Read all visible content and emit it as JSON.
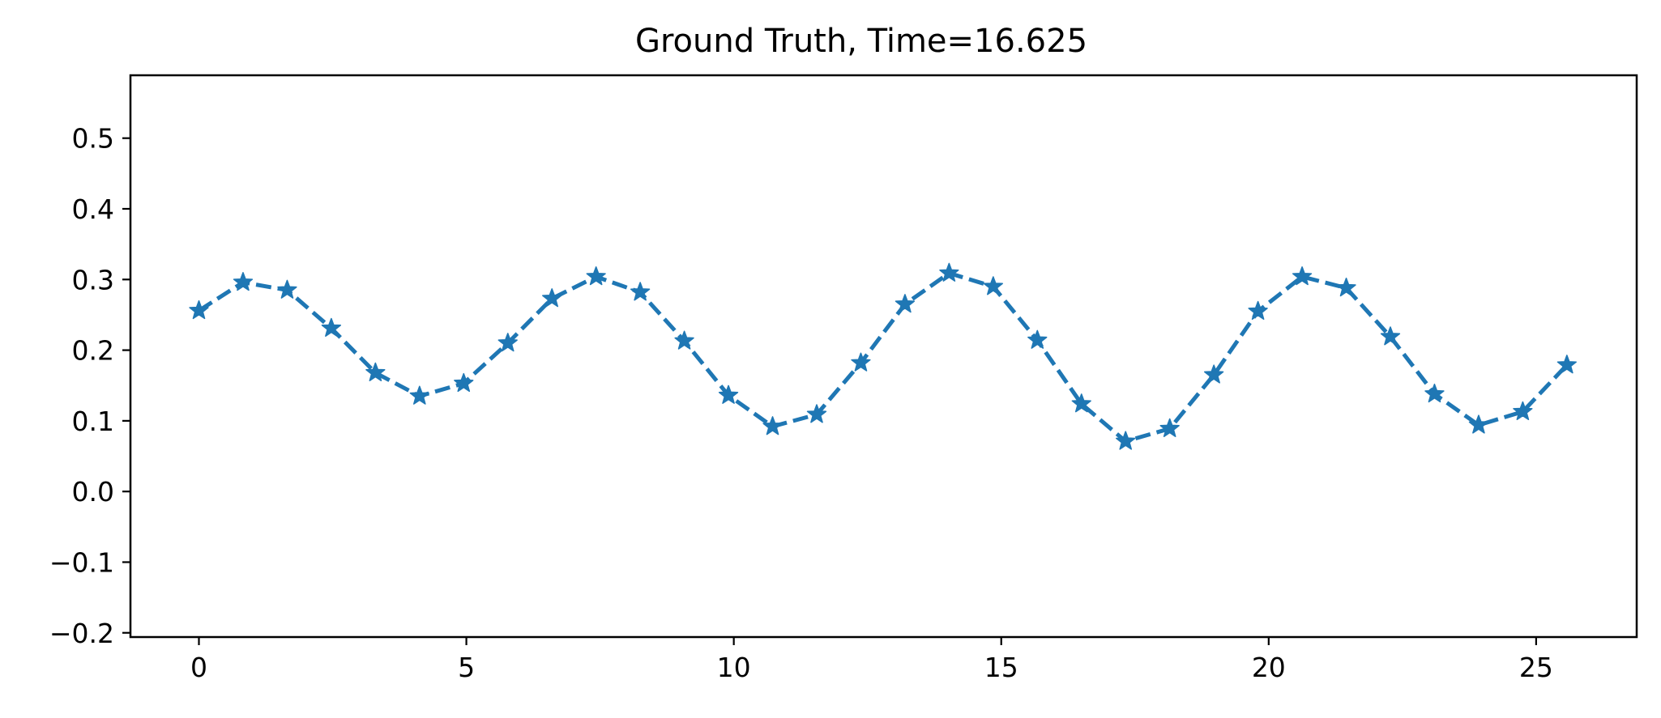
{
  "chart_data": {
    "type": "line",
    "title": "Ground Truth, Time=16.625",
    "xlabel": "",
    "ylabel": "",
    "xlim": [
      -1.28,
      26.88
    ],
    "ylim": [
      -0.206,
      0.589
    ],
    "x_ticks": [
      0,
      5,
      10,
      15,
      20,
      25
    ],
    "x_tick_labels": [
      "0",
      "5",
      "10",
      "15",
      "20",
      "25"
    ],
    "y_ticks": [
      -0.2,
      -0.1,
      0.0,
      0.1,
      0.2,
      0.3,
      0.4,
      0.5
    ],
    "y_tick_labels": [
      "−0.2",
      "−0.1",
      "0.0",
      "0.1",
      "0.2",
      "0.3",
      "0.4",
      "0.5"
    ],
    "grid": false,
    "legend": "none",
    "series": [
      {
        "color": "#1f77b4",
        "linestyle": "dashed",
        "marker": "star",
        "x": [
          0.0,
          0.825,
          1.65,
          2.475,
          3.3,
          4.125,
          4.95,
          5.775,
          6.6,
          7.425,
          8.25,
          9.075,
          9.9,
          10.725,
          11.55,
          12.375,
          13.2,
          14.025,
          14.85,
          15.675,
          16.5,
          17.325,
          18.15,
          18.975,
          19.8,
          20.625,
          21.45,
          22.275,
          23.1,
          23.925,
          24.75,
          25.575
        ],
        "y": [
          0.256,
          0.296,
          0.285,
          0.231,
          0.168,
          0.135,
          0.153,
          0.21,
          0.273,
          0.304,
          0.282,
          0.213,
          0.136,
          0.092,
          0.109,
          0.182,
          0.265,
          0.309,
          0.29,
          0.214,
          0.124,
          0.071,
          0.089,
          0.165,
          0.255,
          0.304,
          0.288,
          0.219,
          0.138,
          0.094,
          0.113,
          0.179
        ]
      }
    ]
  }
}
